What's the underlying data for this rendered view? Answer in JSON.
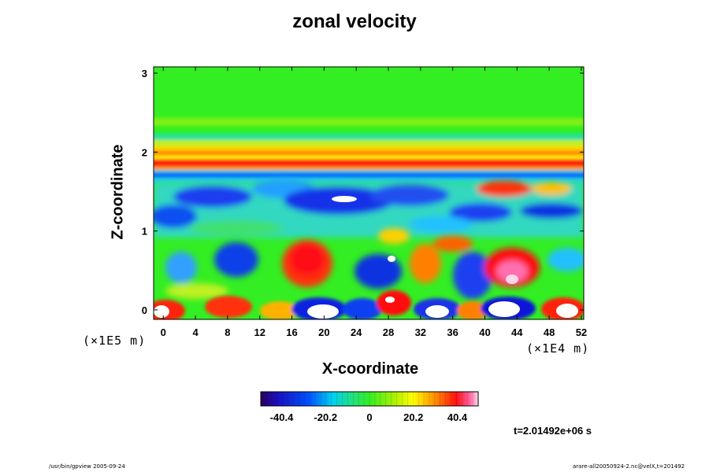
{
  "chart_data": {
    "type": "heatmap",
    "title": "zonal velocity",
    "xlabel": "X-coordinate",
    "ylabel": "Z-coordinate",
    "x_ticks": [
      "0",
      "4",
      "8",
      "12",
      "16",
      "20",
      "24",
      "28",
      "32",
      "36",
      "40",
      "44",
      "48",
      "52"
    ],
    "y_ticks": [
      "0",
      "1",
      "2",
      "3"
    ],
    "x_scale_note": "(×1E4 m)",
    "y_scale_note": "(×1E5 m)",
    "xlim": [
      -1.2,
      52.3
    ],
    "ylim": [
      -0.12,
      3.08
    ],
    "colorbar": {
      "ticks": [
        "-40.4",
        "-20.2",
        "0",
        "20.2",
        "40.4"
      ],
      "range": [
        -50,
        50
      ]
    },
    "time_label": "t=2.01492e+06 s",
    "colors": {
      "background_field": "#33ee22",
      "positive_extreme": "#ffffff",
      "negative_extreme": "#1a0fd8"
    }
  },
  "footer": {
    "left": "/usr/bin/gpview 2005-09-24",
    "right": "arare-all20050924-2.nc@velX,t=201492"
  }
}
